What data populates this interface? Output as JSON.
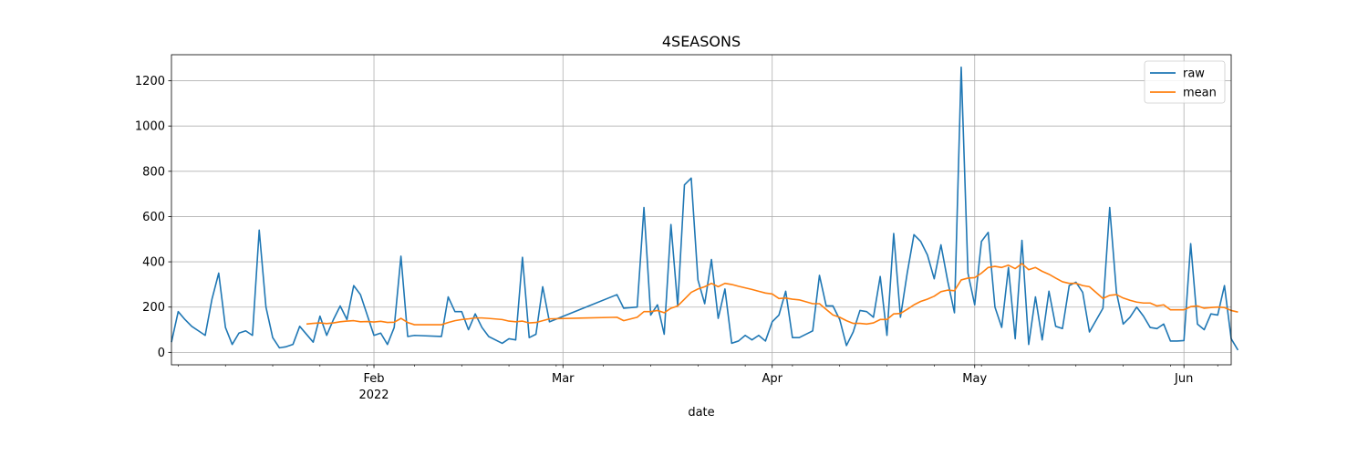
{
  "chart_data": {
    "type": "line",
    "title": "4SEASONS",
    "xlabel": "date",
    "ylabel": "",
    "x_range": [
      "2022-01-02",
      "2022-06-08"
    ],
    "ylim": [
      -55,
      1315
    ],
    "yticks": [
      0,
      200,
      400,
      600,
      800,
      1000,
      1200
    ],
    "xticks": [
      {
        "date": "2022-02-01",
        "label": "Feb",
        "sublabel": "2022"
      },
      {
        "date": "2022-03-01",
        "label": "Mar",
        "sublabel": ""
      },
      {
        "date": "2022-04-01",
        "label": "Apr",
        "sublabel": ""
      },
      {
        "date": "2022-05-01",
        "label": "May",
        "sublabel": ""
      },
      {
        "date": "2022-06-01",
        "label": "Jun",
        "sublabel": ""
      }
    ],
    "grid": true,
    "legend_position": "top-right",
    "series": [
      {
        "name": "raw",
        "color": "#1f77b4",
        "points": [
          [
            "2022-01-02",
            45
          ],
          [
            "2022-01-03",
            180
          ],
          [
            "2022-01-04",
            145
          ],
          [
            "2022-01-05",
            115
          ],
          [
            "2022-01-06",
            95
          ],
          [
            "2022-01-07",
            75
          ],
          [
            "2022-01-08",
            235
          ],
          [
            "2022-01-09",
            350
          ],
          [
            "2022-01-10",
            110
          ],
          [
            "2022-01-11",
            35
          ],
          [
            "2022-01-12",
            85
          ],
          [
            "2022-01-13",
            95
          ],
          [
            "2022-01-14",
            75
          ],
          [
            "2022-01-15",
            540
          ],
          [
            "2022-01-16",
            200
          ],
          [
            "2022-01-17",
            65
          ],
          [
            "2022-01-18",
            20
          ],
          [
            "2022-01-19",
            25
          ],
          [
            "2022-01-20",
            35
          ],
          [
            "2022-01-21",
            115
          ],
          [
            "2022-01-23",
            45
          ],
          [
            "2022-01-24",
            160
          ],
          [
            "2022-01-25",
            75
          ],
          [
            "2022-01-26",
            145
          ],
          [
            "2022-01-27",
            205
          ],
          [
            "2022-01-28",
            145
          ],
          [
            "2022-01-29",
            295
          ],
          [
            "2022-01-30",
            255
          ],
          [
            "2022-01-31",
            165
          ],
          [
            "2022-02-01",
            75
          ],
          [
            "2022-02-02",
            85
          ],
          [
            "2022-02-03",
            35
          ],
          [
            "2022-02-04",
            110
          ],
          [
            "2022-02-05",
            425
          ],
          [
            "2022-02-06",
            70
          ],
          [
            "2022-02-07",
            75
          ],
          [
            "2022-02-11",
            70
          ],
          [
            "2022-02-12",
            245
          ],
          [
            "2022-02-13",
            180
          ],
          [
            "2022-02-14",
            180
          ],
          [
            "2022-02-15",
            100
          ],
          [
            "2022-02-16",
            170
          ],
          [
            "2022-02-17",
            110
          ],
          [
            "2022-02-18",
            70
          ],
          [
            "2022-02-20",
            40
          ],
          [
            "2022-02-21",
            60
          ],
          [
            "2022-02-22",
            55
          ],
          [
            "2022-02-23",
            420
          ],
          [
            "2022-02-24",
            65
          ],
          [
            "2022-02-25",
            80
          ],
          [
            "2022-02-26",
            290
          ],
          [
            "2022-02-27",
            135
          ],
          [
            "2022-03-09",
            255
          ],
          [
            "2022-03-10",
            195
          ],
          [
            "2022-03-12",
            200
          ],
          [
            "2022-03-13",
            640
          ],
          [
            "2022-03-14",
            165
          ],
          [
            "2022-03-15",
            210
          ],
          [
            "2022-03-16",
            80
          ],
          [
            "2022-03-17",
            565
          ],
          [
            "2022-03-18",
            205
          ],
          [
            "2022-03-19",
            740
          ],
          [
            "2022-03-20",
            770
          ],
          [
            "2022-03-21",
            320
          ],
          [
            "2022-03-22",
            215
          ],
          [
            "2022-03-23",
            410
          ],
          [
            "2022-03-24",
            150
          ],
          [
            "2022-03-25",
            280
          ],
          [
            "2022-03-26",
            40
          ],
          [
            "2022-03-27",
            50
          ],
          [
            "2022-03-28",
            75
          ],
          [
            "2022-03-29",
            55
          ],
          [
            "2022-03-30",
            75
          ],
          [
            "2022-03-31",
            50
          ],
          [
            "2022-04-01",
            135
          ],
          [
            "2022-04-02",
            165
          ],
          [
            "2022-04-03",
            270
          ],
          [
            "2022-04-04",
            65
          ],
          [
            "2022-04-05",
            65
          ],
          [
            "2022-04-07",
            95
          ],
          [
            "2022-04-08",
            340
          ],
          [
            "2022-04-09",
            205
          ],
          [
            "2022-04-10",
            205
          ],
          [
            "2022-04-11",
            145
          ],
          [
            "2022-04-12",
            30
          ],
          [
            "2022-04-13",
            90
          ],
          [
            "2022-04-14",
            185
          ],
          [
            "2022-04-15",
            180
          ],
          [
            "2022-04-16",
            155
          ],
          [
            "2022-04-17",
            335
          ],
          [
            "2022-04-18",
            75
          ],
          [
            "2022-04-19",
            525
          ],
          [
            "2022-04-20",
            155
          ],
          [
            "2022-04-21",
            350
          ],
          [
            "2022-04-22",
            520
          ],
          [
            "2022-04-23",
            490
          ],
          [
            "2022-04-24",
            430
          ],
          [
            "2022-04-25",
            325
          ],
          [
            "2022-04-26",
            475
          ],
          [
            "2022-04-27",
            315
          ],
          [
            "2022-04-28",
            175
          ],
          [
            "2022-04-29",
            1260
          ],
          [
            "2022-04-30",
            350
          ],
          [
            "2022-05-01",
            210
          ],
          [
            "2022-05-02",
            490
          ],
          [
            "2022-05-03",
            530
          ],
          [
            "2022-05-04",
            200
          ],
          [
            "2022-05-05",
            110
          ],
          [
            "2022-05-06",
            375
          ],
          [
            "2022-05-07",
            60
          ],
          [
            "2022-05-08",
            495
          ],
          [
            "2022-05-09",
            35
          ],
          [
            "2022-05-10",
            245
          ],
          [
            "2022-05-11",
            55
          ],
          [
            "2022-05-12",
            270
          ],
          [
            "2022-05-13",
            115
          ],
          [
            "2022-05-14",
            105
          ],
          [
            "2022-05-15",
            295
          ],
          [
            "2022-05-16",
            310
          ],
          [
            "2022-05-17",
            265
          ],
          [
            "2022-05-18",
            90
          ],
          [
            "2022-05-20",
            195
          ],
          [
            "2022-05-21",
            640
          ],
          [
            "2022-05-22",
            265
          ],
          [
            "2022-05-23",
            125
          ],
          [
            "2022-05-24",
            155
          ],
          [
            "2022-05-25",
            200
          ],
          [
            "2022-05-26",
            160
          ],
          [
            "2022-05-27",
            110
          ],
          [
            "2022-05-28",
            105
          ],
          [
            "2022-05-29",
            125
          ],
          [
            "2022-05-30",
            50
          ],
          [
            "2022-05-31",
            50
          ],
          [
            "2022-06-01",
            52
          ],
          [
            "2022-06-02",
            480
          ],
          [
            "2022-06-03",
            125
          ],
          [
            "2022-06-04",
            100
          ],
          [
            "2022-06-05",
            170
          ],
          [
            "2022-06-06",
            165
          ],
          [
            "2022-06-07",
            295
          ],
          [
            "2022-06-08",
            60
          ],
          [
            "2022-06-09",
            10
          ]
        ]
      },
      {
        "name": "mean",
        "color": "#ff7f0e",
        "points": [
          [
            "2022-01-22",
            125
          ],
          [
            "2022-01-23",
            128
          ],
          [
            "2022-01-24",
            130
          ],
          [
            "2022-01-25",
            127
          ],
          [
            "2022-01-26",
            130
          ],
          [
            "2022-01-27",
            135
          ],
          [
            "2022-01-28",
            138
          ],
          [
            "2022-01-29",
            140
          ],
          [
            "2022-01-30",
            135
          ],
          [
            "2022-01-31",
            136
          ],
          [
            "2022-02-01",
            134
          ],
          [
            "2022-02-02",
            137
          ],
          [
            "2022-02-03",
            132
          ],
          [
            "2022-02-04",
            133
          ],
          [
            "2022-02-05",
            150
          ],
          [
            "2022-02-06",
            132
          ],
          [
            "2022-02-07",
            122
          ],
          [
            "2022-02-11",
            122
          ],
          [
            "2022-02-12",
            132
          ],
          [
            "2022-02-13",
            140
          ],
          [
            "2022-02-14",
            145
          ],
          [
            "2022-02-15",
            148
          ],
          [
            "2022-02-16",
            152
          ],
          [
            "2022-02-17",
            152
          ],
          [
            "2022-02-18",
            150
          ],
          [
            "2022-02-20",
            145
          ],
          [
            "2022-02-21",
            138
          ],
          [
            "2022-02-22",
            135
          ],
          [
            "2022-02-23",
            138
          ],
          [
            "2022-02-24",
            130
          ],
          [
            "2022-02-25",
            132
          ],
          [
            "2022-02-26",
            140
          ],
          [
            "2022-02-27",
            148
          ],
          [
            "2022-03-09",
            155
          ],
          [
            "2022-03-10",
            140
          ],
          [
            "2022-03-12",
            155
          ],
          [
            "2022-03-13",
            180
          ],
          [
            "2022-03-14",
            180
          ],
          [
            "2022-03-15",
            185
          ],
          [
            "2022-03-16",
            175
          ],
          [
            "2022-03-17",
            195
          ],
          [
            "2022-03-18",
            205
          ],
          [
            "2022-03-19",
            235
          ],
          [
            "2022-03-20",
            265
          ],
          [
            "2022-03-21",
            280
          ],
          [
            "2022-03-22",
            290
          ],
          [
            "2022-03-23",
            305
          ],
          [
            "2022-03-24",
            290
          ],
          [
            "2022-03-25",
            305
          ],
          [
            "2022-03-26",
            300
          ],
          [
            "2022-03-27",
            292
          ],
          [
            "2022-03-28",
            285
          ],
          [
            "2022-03-29",
            278
          ],
          [
            "2022-03-30",
            270
          ],
          [
            "2022-03-31",
            262
          ],
          [
            "2022-04-01",
            258
          ],
          [
            "2022-04-02",
            238
          ],
          [
            "2022-04-03",
            240
          ],
          [
            "2022-04-04",
            235
          ],
          [
            "2022-04-05",
            232
          ],
          [
            "2022-04-07",
            215
          ],
          [
            "2022-04-08",
            215
          ],
          [
            "2022-04-09",
            190
          ],
          [
            "2022-04-10",
            165
          ],
          [
            "2022-04-11",
            155
          ],
          [
            "2022-04-12",
            140
          ],
          [
            "2022-04-13",
            128
          ],
          [
            "2022-04-14",
            128
          ],
          [
            "2022-04-15",
            125
          ],
          [
            "2022-04-16",
            130
          ],
          [
            "2022-04-17",
            145
          ],
          [
            "2022-04-18",
            145
          ],
          [
            "2022-04-19",
            170
          ],
          [
            "2022-04-20",
            172
          ],
          [
            "2022-04-21",
            190
          ],
          [
            "2022-04-22",
            210
          ],
          [
            "2022-04-23",
            225
          ],
          [
            "2022-04-24",
            235
          ],
          [
            "2022-04-25",
            248
          ],
          [
            "2022-04-26",
            268
          ],
          [
            "2022-04-27",
            275
          ],
          [
            "2022-04-28",
            272
          ],
          [
            "2022-04-29",
            320
          ],
          [
            "2022-04-30",
            328
          ],
          [
            "2022-05-01",
            330
          ],
          [
            "2022-05-02",
            350
          ],
          [
            "2022-05-03",
            375
          ],
          [
            "2022-05-04",
            380
          ],
          [
            "2022-05-05",
            375
          ],
          [
            "2022-05-06",
            385
          ],
          [
            "2022-05-07",
            370
          ],
          [
            "2022-05-08",
            392
          ],
          [
            "2022-05-09",
            365
          ],
          [
            "2022-05-10",
            375
          ],
          [
            "2022-05-11",
            358
          ],
          [
            "2022-05-12",
            345
          ],
          [
            "2022-05-13",
            328
          ],
          [
            "2022-05-14",
            312
          ],
          [
            "2022-05-15",
            305
          ],
          [
            "2022-05-16",
            305
          ],
          [
            "2022-05-17",
            295
          ],
          [
            "2022-05-18",
            290
          ],
          [
            "2022-05-20",
            238
          ],
          [
            "2022-05-21",
            252
          ],
          [
            "2022-05-22",
            255
          ],
          [
            "2022-05-23",
            240
          ],
          [
            "2022-05-24",
            230
          ],
          [
            "2022-05-25",
            222
          ],
          [
            "2022-05-26",
            218
          ],
          [
            "2022-05-27",
            218
          ],
          [
            "2022-05-28",
            205
          ],
          [
            "2022-05-29",
            210
          ],
          [
            "2022-05-30",
            188
          ],
          [
            "2022-05-31",
            188
          ],
          [
            "2022-06-01",
            188
          ],
          [
            "2022-06-02",
            202
          ],
          [
            "2022-06-03",
            205
          ],
          [
            "2022-06-04",
            195
          ],
          [
            "2022-06-05",
            198
          ],
          [
            "2022-06-06",
            200
          ],
          [
            "2022-06-07",
            198
          ],
          [
            "2022-06-08",
            185
          ],
          [
            "2022-06-09",
            178
          ]
        ]
      }
    ]
  }
}
